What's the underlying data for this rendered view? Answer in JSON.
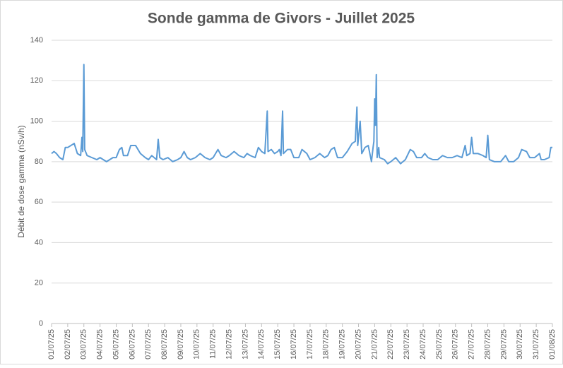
{
  "chart_data": {
    "type": "line",
    "title": "Sonde gamma de Givors - Juillet 2025",
    "y_label": "Débit de dose gamma (nSv/h)",
    "color": "#5b9bd5",
    "grid": true,
    "xlim": [
      0,
      31
    ],
    "xticks": [
      {
        "value": 0,
        "label": "01/07/25"
      },
      {
        "value": 1,
        "label": "02/07/25"
      },
      {
        "value": 2,
        "label": "03/07/25"
      },
      {
        "value": 3,
        "label": "04/07/25"
      },
      {
        "value": 4,
        "label": "05/07/25"
      },
      {
        "value": 5,
        "label": "06/07/25"
      },
      {
        "value": 6,
        "label": "07/07/25"
      },
      {
        "value": 7,
        "label": "08/07/25"
      },
      {
        "value": 8,
        "label": "09/07/25"
      },
      {
        "value": 9,
        "label": "10/07/25"
      },
      {
        "value": 10,
        "label": "11/07/25"
      },
      {
        "value": 11,
        "label": "12/07/25"
      },
      {
        "value": 12,
        "label": "13/07/25"
      },
      {
        "value": 13,
        "label": "14/07/25"
      },
      {
        "value": 14,
        "label": "15/07/25"
      },
      {
        "value": 15,
        "label": "16/07/25"
      },
      {
        "value": 16,
        "label": "17/07/25"
      },
      {
        "value": 17,
        "label": "18/07/25"
      },
      {
        "value": 18,
        "label": "19/07/25"
      },
      {
        "value": 19,
        "label": "20/07/25"
      },
      {
        "value": 20,
        "label": "21/07/25"
      },
      {
        "value": 21,
        "label": "22/07/25"
      },
      {
        "value": 22,
        "label": "23/07/25"
      },
      {
        "value": 23,
        "label": "24/07/25"
      },
      {
        "value": 24,
        "label": "25/07/25"
      },
      {
        "value": 25,
        "label": "26/07/25"
      },
      {
        "value": 26,
        "label": "27/07/25"
      },
      {
        "value": 27,
        "label": "28/07/25"
      },
      {
        "value": 28,
        "label": "29/07/25"
      },
      {
        "value": 29,
        "label": "30/07/25"
      },
      {
        "value": 30,
        "label": "31/07/25"
      },
      {
        "value": 31,
        "label": "01/08/25"
      }
    ],
    "ylim": [
      0,
      140
    ],
    "yticks": [
      0,
      20,
      40,
      60,
      80,
      100,
      120,
      140
    ],
    "x": [
      0,
      0.15,
      0.3,
      0.5,
      0.7,
      0.85,
      1.0,
      1.2,
      1.4,
      1.6,
      1.8,
      1.88,
      1.93,
      2.0,
      2.05,
      2.2,
      2.5,
      2.8,
      3.0,
      3.2,
      3.4,
      3.6,
      3.8,
      4.0,
      4.2,
      4.35,
      4.45,
      4.7,
      4.9,
      5.2,
      5.5,
      5.8,
      6.0,
      6.2,
      6.5,
      6.6,
      6.7,
      6.9,
      7.2,
      7.5,
      7.8,
      8.0,
      8.2,
      8.4,
      8.6,
      8.9,
      9.2,
      9.5,
      9.8,
      10.0,
      10.3,
      10.5,
      10.8,
      11.0,
      11.3,
      11.6,
      11.9,
      12.1,
      12.3,
      12.6,
      12.8,
      13.0,
      13.2,
      13.35,
      13.4,
      13.6,
      13.8,
      14.0,
      14.1,
      14.2,
      14.3,
      14.35,
      14.6,
      14.8,
      15.0,
      15.3,
      15.5,
      15.8,
      16.0,
      16.3,
      16.6,
      16.9,
      17.1,
      17.3,
      17.5,
      17.7,
      18.0,
      18.3,
      18.6,
      18.8,
      18.9,
      18.95,
      19.1,
      19.2,
      19.4,
      19.6,
      19.8,
      19.9,
      19.95,
      20.0,
      20.05,
      20.1,
      20.15,
      20.25,
      20.3,
      20.6,
      20.8,
      21.0,
      21.3,
      21.6,
      21.9,
      22.2,
      22.4,
      22.6,
      22.9,
      23.1,
      23.3,
      23.6,
      23.9,
      24.2,
      24.5,
      24.8,
      25.1,
      25.4,
      25.6,
      25.7,
      25.9,
      26.0,
      26.1,
      26.4,
      26.7,
      26.9,
      27.0,
      27.1,
      27.4,
      27.8,
      28.1,
      28.3,
      28.6,
      28.9,
      29.1,
      29.4,
      29.6,
      29.9,
      30.2,
      30.3,
      30.5,
      30.8,
      30.9,
      31.0
    ],
    "values": [
      84,
      85,
      84,
      82,
      81,
      87,
      87,
      88,
      89,
      84,
      83,
      92,
      85,
      128,
      86,
      83,
      82,
      81,
      82,
      81,
      80,
      81,
      82,
      82,
      86,
      87,
      83,
      83,
      88,
      88,
      84,
      82,
      81,
      83,
      81,
      91,
      82,
      81,
      82,
      80,
      81,
      82,
      85,
      82,
      81,
      82,
      84,
      82,
      81,
      82,
      86,
      83,
      82,
      83,
      85,
      83,
      82,
      84,
      83,
      82,
      87,
      85,
      84,
      105,
      85,
      86,
      84,
      85,
      86,
      83,
      105,
      84,
      86,
      86,
      82,
      82,
      86,
      84,
      81,
      82,
      84,
      82,
      83,
      86,
      87,
      82,
      82,
      85,
      89,
      90,
      107,
      88,
      100,
      84,
      87,
      88,
      80,
      87,
      90,
      111,
      98,
      123,
      82,
      87,
      82,
      81,
      79,
      80,
      82,
      79,
      81,
      86,
      85,
      82,
      82,
      84,
      82,
      81,
      81,
      83,
      82,
      82,
      83,
      82,
      88,
      83,
      84,
      92,
      84,
      84,
      83,
      82,
      93,
      81,
      80,
      80,
      83,
      80,
      80,
      82,
      86,
      85,
      82,
      82,
      84,
      81,
      81,
      82,
      87,
      87
    ]
  }
}
